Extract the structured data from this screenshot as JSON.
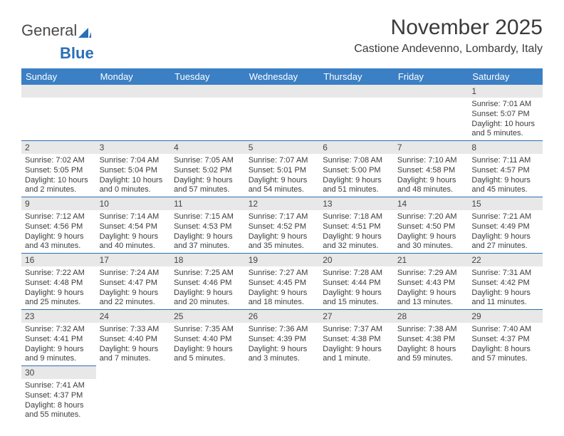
{
  "logo": {
    "text1": "General",
    "text2": "Blue"
  },
  "header": {
    "month_title": "November 2025",
    "location": "Castione Andevenno, Lombardy, Italy"
  },
  "colors": {
    "header_bg": "#3b7fc4",
    "row_border": "#2a6fb5",
    "daynum_bg": "#e8e8e8",
    "text": "#3c3c3c"
  },
  "weekdays": [
    "Sunday",
    "Monday",
    "Tuesday",
    "Wednesday",
    "Thursday",
    "Friday",
    "Saturday"
  ],
  "weeks": [
    [
      null,
      null,
      null,
      null,
      null,
      null,
      {
        "n": "1",
        "sr": "Sunrise: 7:01 AM",
        "ss": "Sunset: 5:07 PM",
        "dl": "Daylight: 10 hours and 5 minutes."
      }
    ],
    [
      {
        "n": "2",
        "sr": "Sunrise: 7:02 AM",
        "ss": "Sunset: 5:05 PM",
        "dl": "Daylight: 10 hours and 2 minutes."
      },
      {
        "n": "3",
        "sr": "Sunrise: 7:04 AM",
        "ss": "Sunset: 5:04 PM",
        "dl": "Daylight: 10 hours and 0 minutes."
      },
      {
        "n": "4",
        "sr": "Sunrise: 7:05 AM",
        "ss": "Sunset: 5:02 PM",
        "dl": "Daylight: 9 hours and 57 minutes."
      },
      {
        "n": "5",
        "sr": "Sunrise: 7:07 AM",
        "ss": "Sunset: 5:01 PM",
        "dl": "Daylight: 9 hours and 54 minutes."
      },
      {
        "n": "6",
        "sr": "Sunrise: 7:08 AM",
        "ss": "Sunset: 5:00 PM",
        "dl": "Daylight: 9 hours and 51 minutes."
      },
      {
        "n": "7",
        "sr": "Sunrise: 7:10 AM",
        "ss": "Sunset: 4:58 PM",
        "dl": "Daylight: 9 hours and 48 minutes."
      },
      {
        "n": "8",
        "sr": "Sunrise: 7:11 AM",
        "ss": "Sunset: 4:57 PM",
        "dl": "Daylight: 9 hours and 45 minutes."
      }
    ],
    [
      {
        "n": "9",
        "sr": "Sunrise: 7:12 AM",
        "ss": "Sunset: 4:56 PM",
        "dl": "Daylight: 9 hours and 43 minutes."
      },
      {
        "n": "10",
        "sr": "Sunrise: 7:14 AM",
        "ss": "Sunset: 4:54 PM",
        "dl": "Daylight: 9 hours and 40 minutes."
      },
      {
        "n": "11",
        "sr": "Sunrise: 7:15 AM",
        "ss": "Sunset: 4:53 PM",
        "dl": "Daylight: 9 hours and 37 minutes."
      },
      {
        "n": "12",
        "sr": "Sunrise: 7:17 AM",
        "ss": "Sunset: 4:52 PM",
        "dl": "Daylight: 9 hours and 35 minutes."
      },
      {
        "n": "13",
        "sr": "Sunrise: 7:18 AM",
        "ss": "Sunset: 4:51 PM",
        "dl": "Daylight: 9 hours and 32 minutes."
      },
      {
        "n": "14",
        "sr": "Sunrise: 7:20 AM",
        "ss": "Sunset: 4:50 PM",
        "dl": "Daylight: 9 hours and 30 minutes."
      },
      {
        "n": "15",
        "sr": "Sunrise: 7:21 AM",
        "ss": "Sunset: 4:49 PM",
        "dl": "Daylight: 9 hours and 27 minutes."
      }
    ],
    [
      {
        "n": "16",
        "sr": "Sunrise: 7:22 AM",
        "ss": "Sunset: 4:48 PM",
        "dl": "Daylight: 9 hours and 25 minutes."
      },
      {
        "n": "17",
        "sr": "Sunrise: 7:24 AM",
        "ss": "Sunset: 4:47 PM",
        "dl": "Daylight: 9 hours and 22 minutes."
      },
      {
        "n": "18",
        "sr": "Sunrise: 7:25 AM",
        "ss": "Sunset: 4:46 PM",
        "dl": "Daylight: 9 hours and 20 minutes."
      },
      {
        "n": "19",
        "sr": "Sunrise: 7:27 AM",
        "ss": "Sunset: 4:45 PM",
        "dl": "Daylight: 9 hours and 18 minutes."
      },
      {
        "n": "20",
        "sr": "Sunrise: 7:28 AM",
        "ss": "Sunset: 4:44 PM",
        "dl": "Daylight: 9 hours and 15 minutes."
      },
      {
        "n": "21",
        "sr": "Sunrise: 7:29 AM",
        "ss": "Sunset: 4:43 PM",
        "dl": "Daylight: 9 hours and 13 minutes."
      },
      {
        "n": "22",
        "sr": "Sunrise: 7:31 AM",
        "ss": "Sunset: 4:42 PM",
        "dl": "Daylight: 9 hours and 11 minutes."
      }
    ],
    [
      {
        "n": "23",
        "sr": "Sunrise: 7:32 AM",
        "ss": "Sunset: 4:41 PM",
        "dl": "Daylight: 9 hours and 9 minutes."
      },
      {
        "n": "24",
        "sr": "Sunrise: 7:33 AM",
        "ss": "Sunset: 4:40 PM",
        "dl": "Daylight: 9 hours and 7 minutes."
      },
      {
        "n": "25",
        "sr": "Sunrise: 7:35 AM",
        "ss": "Sunset: 4:40 PM",
        "dl": "Daylight: 9 hours and 5 minutes."
      },
      {
        "n": "26",
        "sr": "Sunrise: 7:36 AM",
        "ss": "Sunset: 4:39 PM",
        "dl": "Daylight: 9 hours and 3 minutes."
      },
      {
        "n": "27",
        "sr": "Sunrise: 7:37 AM",
        "ss": "Sunset: 4:38 PM",
        "dl": "Daylight: 9 hours and 1 minute."
      },
      {
        "n": "28",
        "sr": "Sunrise: 7:38 AM",
        "ss": "Sunset: 4:38 PM",
        "dl": "Daylight: 8 hours and 59 minutes."
      },
      {
        "n": "29",
        "sr": "Sunrise: 7:40 AM",
        "ss": "Sunset: 4:37 PM",
        "dl": "Daylight: 8 hours and 57 minutes."
      }
    ],
    [
      {
        "n": "30",
        "sr": "Sunrise: 7:41 AM",
        "ss": "Sunset: 4:37 PM",
        "dl": "Daylight: 8 hours and 55 minutes."
      },
      null,
      null,
      null,
      null,
      null,
      null
    ]
  ]
}
